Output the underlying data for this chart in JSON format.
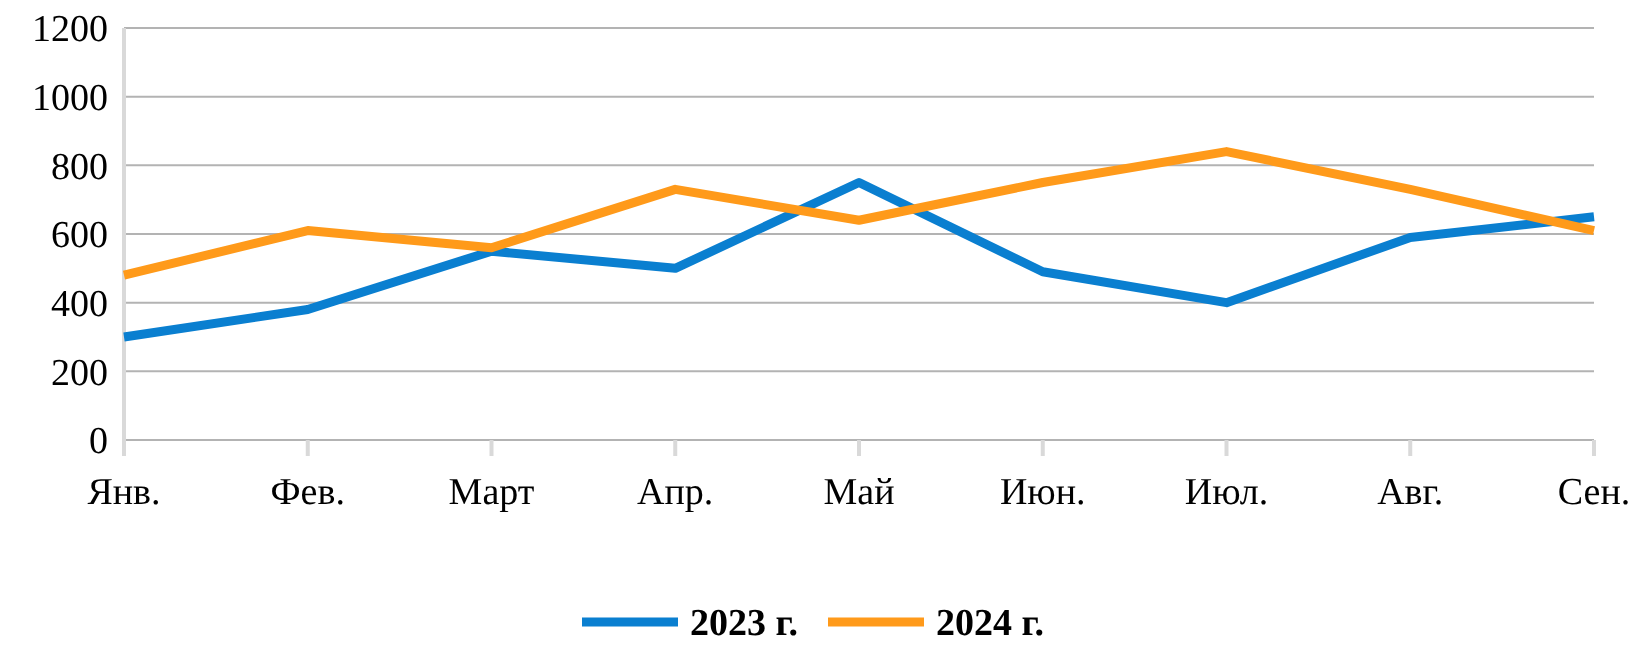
{
  "chart_data": {
    "type": "line",
    "categories": [
      "Янв.",
      "Фев.",
      "Март",
      "Апр.",
      "Май",
      "Июн.",
      "Июл.",
      "Авг.",
      "Сен."
    ],
    "series": [
      {
        "name": "2023 г.",
        "color": "#0a7fd0",
        "values": [
          300,
          380,
          550,
          500,
          750,
          490,
          400,
          590,
          650
        ]
      },
      {
        "name": "2024 г.",
        "color": "#ff9a1a",
        "values": [
          480,
          610,
          560,
          730,
          640,
          750,
          840,
          730,
          610
        ]
      }
    ],
    "ylim": [
      0,
      1200
    ],
    "yticks": [
      0,
      200,
      400,
      600,
      800,
      1000,
      1200
    ],
    "grid": "y",
    "legend": "bottom",
    "marker": "none",
    "line_style": "solid"
  }
}
